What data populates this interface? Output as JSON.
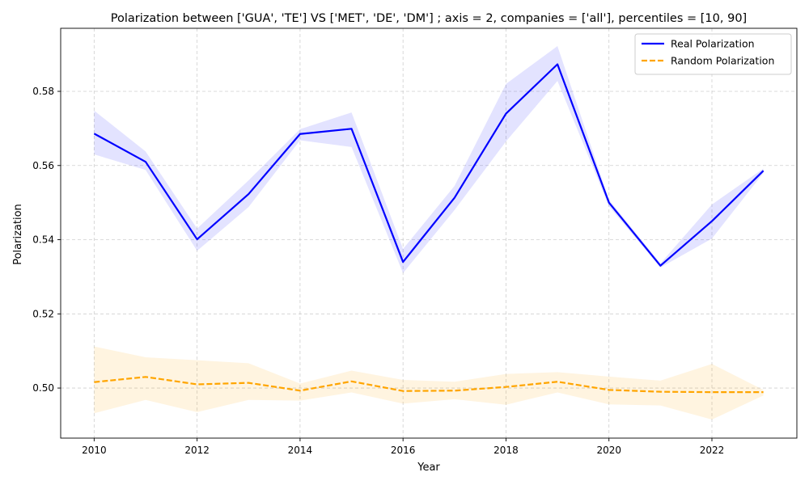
{
  "chart_data": {
    "type": "line",
    "title": "Polarization between ['GUA', 'TE'] VS ['MET', 'DE', 'DM'] ; axis = 2, companies = ['all'], percentiles = [10, 90]",
    "xlabel": "Year",
    "ylabel": "Polarization",
    "xlim": [
      2009.35,
      2023.65
    ],
    "ylim": [
      0.4865,
      0.597
    ],
    "xticks": [
      2010,
      2012,
      2014,
      2016,
      2018,
      2020,
      2022
    ],
    "xtick_labels": [
      "2010",
      "2012",
      "2014",
      "2016",
      "2018",
      "2020",
      "2022"
    ],
    "yticks": [
      0.5,
      0.52,
      0.54,
      0.56,
      0.58
    ],
    "ytick_labels": [
      "0.50",
      "0.52",
      "0.54",
      "0.56",
      "0.58"
    ],
    "grid": true,
    "legend_position": "top-right",
    "x": [
      2010,
      2011,
      2012,
      2013,
      2014,
      2015,
      2016,
      2017,
      2018,
      2019,
      2020,
      2021,
      2022,
      2023
    ],
    "series": [
      {
        "name": "Real Polarization",
        "color": "#0000ff",
        "band_color": "#0000ff",
        "style": "solid",
        "values": [
          0.5686,
          0.561,
          0.5401,
          0.5523,
          0.5685,
          0.5699,
          0.534,
          0.5513,
          0.574,
          0.5873,
          0.55,
          0.533,
          0.545,
          0.5586
        ],
        "lower": [
          0.563,
          0.5588,
          0.537,
          0.5488,
          0.5668,
          0.565,
          0.531,
          0.548,
          0.5665,
          0.5828,
          0.549,
          0.5325,
          0.5403,
          0.558
        ],
        "upper": [
          0.5748,
          0.5638,
          0.543,
          0.556,
          0.5698,
          0.5743,
          0.5375,
          0.5545,
          0.582,
          0.5922,
          0.5508,
          0.5336,
          0.5495,
          0.5592
        ]
      },
      {
        "name": "Random Polarization",
        "color": "#ffa500",
        "band_color": "#ffa500",
        "style": "dashed",
        "values": [
          0.5016,
          0.503,
          0.501,
          0.5014,
          0.4993,
          0.5018,
          0.4992,
          0.4993,
          0.5003,
          0.5017,
          0.4995,
          0.499,
          0.4989,
          0.4989
        ],
        "lower": [
          0.4932,
          0.4968,
          0.4935,
          0.4968,
          0.4966,
          0.4988,
          0.4958,
          0.497,
          0.4955,
          0.4988,
          0.4956,
          0.4953,
          0.4915,
          0.498
        ],
        "upper": [
          0.5112,
          0.5083,
          0.5075,
          0.5067,
          0.5012,
          0.5047,
          0.5022,
          0.5017,
          0.5038,
          0.5043,
          0.5031,
          0.502,
          0.5065,
          0.4995
        ]
      }
    ]
  }
}
